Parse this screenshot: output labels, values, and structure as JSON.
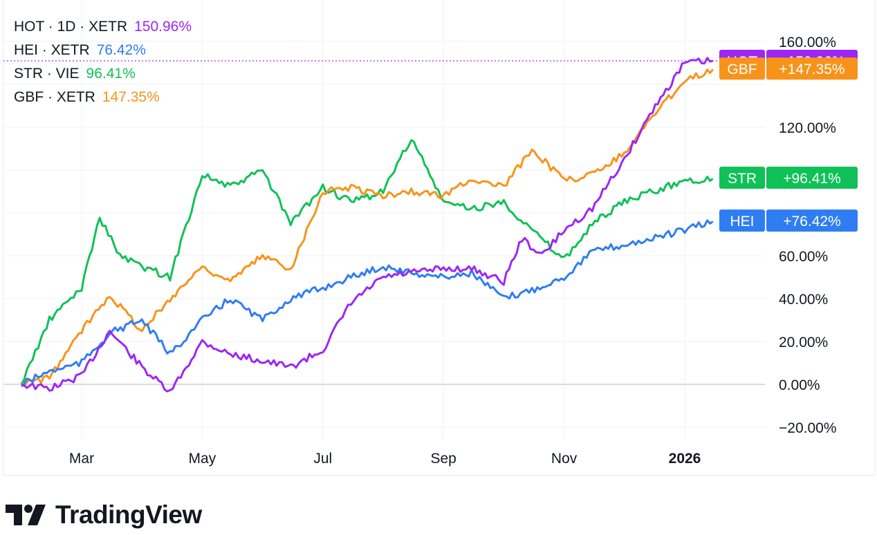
{
  "legend": [
    {
      "name": "HOT · 1D · XETR",
      "pct": "150.96%",
      "color": "#9c27f5"
    },
    {
      "name": "HEI · XETR",
      "pct": "76.42%",
      "color": "#2f7df2"
    },
    {
      "name": "STR · VIE",
      "pct": "96.41%",
      "color": "#0fc157"
    },
    {
      "name": "GBF · XETR",
      "pct": "147.35%",
      "color": "#f7931a"
    }
  ],
  "brand": {
    "name": "TradingView"
  },
  "chart_data": {
    "type": "line",
    "y_unit": "%",
    "ylim": [
      -20,
      160
    ],
    "y_ticks": [
      "160.00%",
      "120.00%",
      "60.00%",
      "40.00%",
      "20.00%",
      "0.00%",
      "−20.00%"
    ],
    "x_ticks": [
      "Mar",
      "May",
      "Jul",
      "Sep",
      "Nov",
      "2026"
    ],
    "grid": true,
    "series": [
      {
        "name": "HOT",
        "label": "HOT",
        "badge": "+150.96%",
        "last": 150.96,
        "color": "#9c27f5",
        "x": [
          "Feb 1",
          "Feb 15",
          "Mar 1",
          "Mar 15",
          "Apr 1",
          "Apr 15",
          "May 1",
          "May 15",
          "Jun 1",
          "Jun 15",
          "Jul 1",
          "Jul 15",
          "Aug 1",
          "Aug 15",
          "Sep 1",
          "Sep 15",
          "Oct 1",
          "Oct 10",
          "Oct 20",
          "Nov 1",
          "Nov 15",
          "Dec 1",
          "Dec 15",
          "Jan 1",
          "Jan 15"
        ],
        "values": [
          0,
          -2,
          4,
          25,
          8,
          -4,
          20,
          14,
          11,
          8,
          16,
          38,
          50,
          52,
          54,
          54,
          48,
          68,
          60,
          72,
          82,
          105,
          128,
          150,
          151
        ]
      },
      {
        "name": "HEI",
        "label": "HEI",
        "badge": "+76.42%",
        "last": 76.42,
        "color": "#2f7df2",
        "x": [
          "Feb 1",
          "Feb 15",
          "Mar 1",
          "Mar 15",
          "Apr 1",
          "Apr 15",
          "May 1",
          "May 15",
          "Jun 1",
          "Jun 15",
          "Jul 1",
          "Jul 15",
          "Aug 1",
          "Aug 15",
          "Sep 1",
          "Sep 15",
          "Oct 1",
          "Oct 15",
          "Nov 1",
          "Nov 15",
          "Dec 1",
          "Dec 15",
          "Jan 1",
          "Jan 15"
        ],
        "values": [
          0,
          6,
          10,
          24,
          30,
          14,
          30,
          40,
          30,
          40,
          45,
          50,
          55,
          52,
          50,
          52,
          40,
          44,
          50,
          62,
          65,
          68,
          72,
          76
        ]
      },
      {
        "name": "STR",
        "label": "STR",
        "badge": "+96.41%",
        "last": 96.41,
        "color": "#0fc157",
        "x": [
          "Feb 1",
          "Feb 15",
          "Mar 1",
          "Mar 10",
          "Mar 20",
          "Apr 1",
          "Apr 15",
          "May 1",
          "May 15",
          "Jun 1",
          "Jun 15",
          "Jul 1",
          "Jul 15",
          "Aug 1",
          "Aug 15",
          "Sep 1",
          "Sep 15",
          "Oct 1",
          "Oct 15",
          "Nov 1",
          "Nov 15",
          "Dec 1",
          "Dec 15",
          "Jan 1",
          "Jan 15"
        ],
        "values": [
          0,
          30,
          45,
          78,
          60,
          55,
          50,
          98,
          92,
          100,
          75,
          92,
          85,
          90,
          115,
          85,
          82,
          85,
          72,
          58,
          75,
          85,
          90,
          95,
          96
        ]
      },
      {
        "name": "GBF",
        "label": "GBF",
        "badge": "+147.35%",
        "last": 147.35,
        "color": "#f7931a",
        "x": [
          "Feb 1",
          "Feb 15",
          "Mar 1",
          "Mar 15",
          "Apr 1",
          "Apr 15",
          "May 1",
          "May 15",
          "Jun 1",
          "Jun 15",
          "Jul 1",
          "Jul 15",
          "Aug 1",
          "Aug 15",
          "Sep 1",
          "Sep 15",
          "Oct 1",
          "Oct 15",
          "Nov 1",
          "Nov 15",
          "Dec 1",
          "Dec 15",
          "Jan 1",
          "Jan 15"
        ],
        "values": [
          0,
          3,
          25,
          42,
          25,
          40,
          55,
          48,
          60,
          54,
          90,
          92,
          88,
          90,
          88,
          96,
          92,
          110,
          95,
          98,
          108,
          125,
          142,
          147
        ]
      }
    ]
  }
}
